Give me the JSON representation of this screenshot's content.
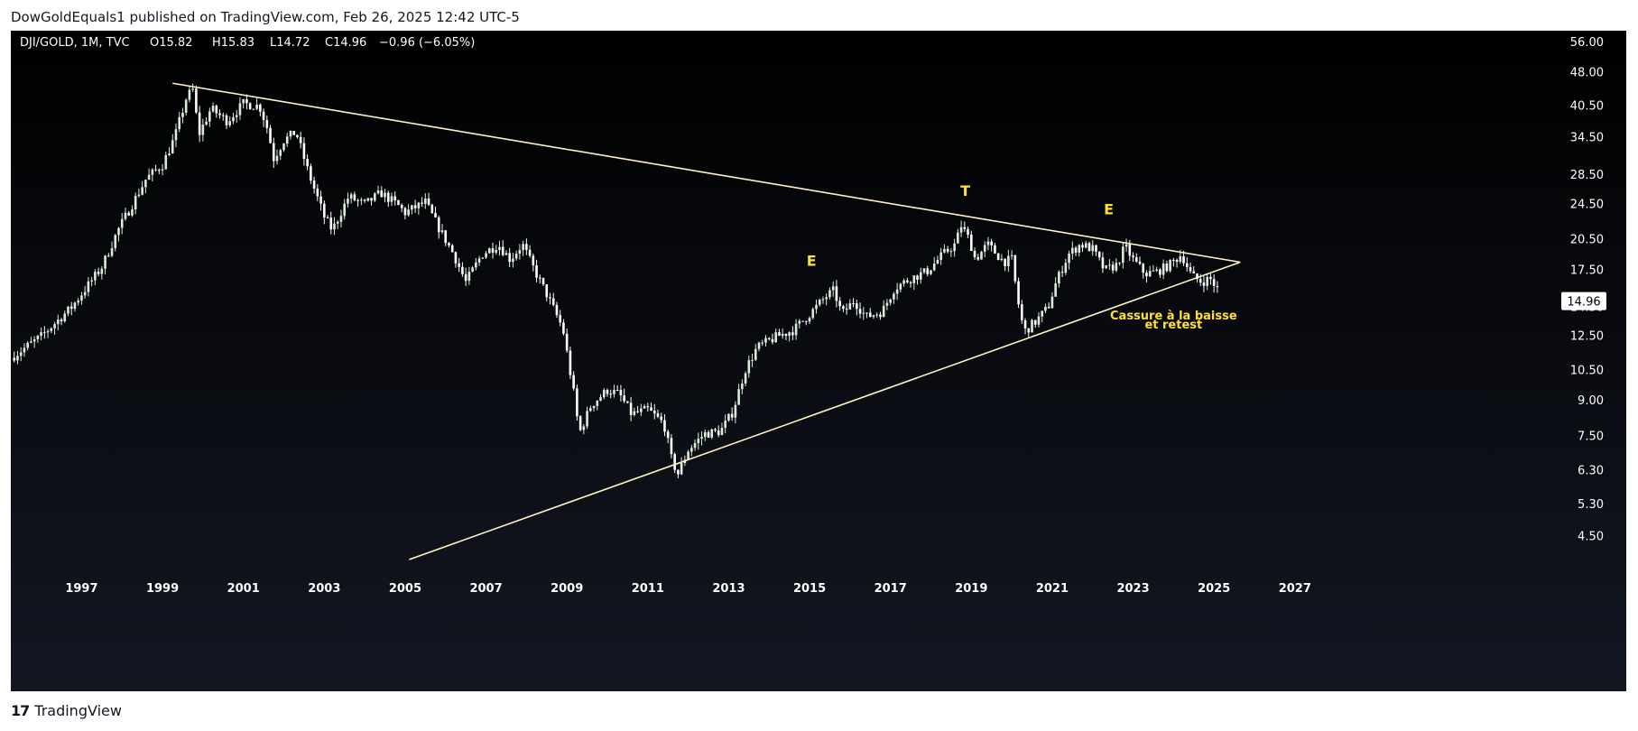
{
  "publish_caption": "DowGoldEquals1 published on TradingView.com, Feb 26, 2025 12:42 UTC-5",
  "footer": {
    "logo_glyph": "17",
    "brand": "TradingView"
  },
  "colors": {
    "bg_top": "#000000",
    "bg_bottom": "#131722",
    "candle_up": "#d9ecd9",
    "candle_down": "#ffffff",
    "trendline": "#fff4c2",
    "annotation": "#ffe033",
    "axis_text": "#ffffff",
    "price_tag_bg": "#ffffff",
    "price_tag_text": "#000000"
  },
  "chart_data": {
    "type": "candlestick",
    "symbol_line": {
      "symbol": "DJI/GOLD, 1M, TVC",
      "open": "O15.82",
      "high": "H15.83",
      "low": "L14.72",
      "close": "C14.96",
      "change": "−0.96 (−6.05%)"
    },
    "y_scale": "log",
    "ylim": [
      3.75,
      59.5
    ],
    "xlim": [
      1995.25,
      2028.5
    ],
    "y_ticks": [
      56.0,
      48.0,
      40.5,
      34.5,
      28.5,
      24.5,
      20.5,
      17.5,
      14.5,
      12.5,
      10.5,
      9.0,
      7.5,
      6.3,
      5.3,
      4.5
    ],
    "y_tick_labels": [
      "56.00",
      "48.00",
      "40.50",
      "34.50",
      "28.50",
      "24.50",
      "20.50",
      "17.50",
      "14.50",
      "12.50",
      "10.50",
      "9.00",
      "7.50",
      "6.30",
      "5.30",
      "4.50"
    ],
    "x_ticks": [
      1997,
      1999,
      2001,
      2003,
      2005,
      2007,
      2009,
      2011,
      2013,
      2015,
      2017,
      2019,
      2021,
      2023,
      2025,
      2027
    ],
    "x_tick_labels": [
      "1997",
      "1999",
      "2001",
      "2003",
      "2005",
      "2007",
      "2009",
      "2011",
      "2013",
      "2015",
      "2017",
      "2019",
      "2021",
      "2023",
      "2025",
      "2027"
    ],
    "last_price": 14.96,
    "last_price_label": "14.96",
    "price_path": [
      [
        1995.25,
        11.2
      ],
      [
        1996.0,
        12.5
      ],
      [
        1996.75,
        14.5
      ],
      [
        1997.5,
        17.8
      ],
      [
        1997.9,
        21.5
      ],
      [
        1998.25,
        24.5
      ],
      [
        1998.6,
        28.0
      ],
      [
        1999.0,
        30.0
      ],
      [
        1999.3,
        34.5
      ],
      [
        1999.6,
        42.5
      ],
      [
        1999.75,
        44.0
      ],
      [
        1999.9,
        35.0
      ],
      [
        2000.2,
        40.0
      ],
      [
        2000.6,
        37.5
      ],
      [
        2001.0,
        41.0
      ],
      [
        2001.4,
        40.5
      ],
      [
        2001.6,
        36.0
      ],
      [
        2001.75,
        31.0
      ],
      [
        2002.0,
        34.0
      ],
      [
        2002.3,
        35.5
      ],
      [
        2002.6,
        29.0
      ],
      [
        2003.0,
        23.0
      ],
      [
        2003.2,
        21.5
      ],
      [
        2003.6,
        25.5
      ],
      [
        2004.0,
        24.5
      ],
      [
        2004.4,
        26.0
      ],
      [
        2004.8,
        24.5
      ],
      [
        2005.0,
        23.5
      ],
      [
        2005.5,
        24.8
      ],
      [
        2005.8,
        22.0
      ],
      [
        2006.2,
        19.0
      ],
      [
        2006.5,
        16.5
      ],
      [
        2006.9,
        19.0
      ],
      [
        2007.3,
        20.0
      ],
      [
        2007.6,
        18.5
      ],
      [
        2007.9,
        20.0
      ],
      [
        2008.2,
        17.5
      ],
      [
        2008.5,
        15.5
      ],
      [
        2008.9,
        13.0
      ],
      [
        2009.2,
        9.0
      ],
      [
        2009.3,
        7.6
      ],
      [
        2009.6,
        8.8
      ],
      [
        2010.0,
        9.5
      ],
      [
        2010.3,
        9.3
      ],
      [
        2010.6,
        8.4
      ],
      [
        2011.0,
        8.6
      ],
      [
        2011.4,
        8.0
      ],
      [
        2011.6,
        6.6
      ],
      [
        2011.75,
        6.2
      ],
      [
        2012.0,
        7.0
      ],
      [
        2012.4,
        7.6
      ],
      [
        2012.8,
        7.7
      ],
      [
        2013.1,
        8.5
      ],
      [
        2013.4,
        10.5
      ],
      [
        2013.7,
        11.8
      ],
      [
        2014.2,
        12.5
      ],
      [
        2014.6,
        12.9
      ],
      [
        2015.0,
        14.0
      ],
      [
        2015.4,
        15.3
      ],
      [
        2015.6,
        15.8
      ],
      [
        2015.8,
        14.0
      ],
      [
        2016.1,
        15.0
      ],
      [
        2016.4,
        13.8
      ],
      [
        2016.8,
        14.2
      ],
      [
        2017.1,
        16.0
      ],
      [
        2017.5,
        16.8
      ],
      [
        2017.9,
        17.4
      ],
      [
        2018.3,
        19.0
      ],
      [
        2018.6,
        20.0
      ],
      [
        2018.75,
        22.0
      ],
      [
        2018.95,
        20.5
      ],
      [
        2019.1,
        18.5
      ],
      [
        2019.4,
        20.0
      ],
      [
        2019.8,
        18.3
      ],
      [
        2020.0,
        18.5
      ],
      [
        2020.15,
        15.0
      ],
      [
        2020.3,
        12.8
      ],
      [
        2020.6,
        13.5
      ],
      [
        2020.9,
        14.5
      ],
      [
        2021.1,
        16.5
      ],
      [
        2021.4,
        19.0
      ],
      [
        2021.7,
        20.0
      ],
      [
        2022.0,
        19.5
      ],
      [
        2022.3,
        17.5
      ],
      [
        2022.6,
        18.0
      ],
      [
        2022.8,
        19.8
      ],
      [
        2023.0,
        18.5
      ],
      [
        2023.3,
        17.2
      ],
      [
        2023.6,
        17.4
      ],
      [
        2023.9,
        18.0
      ],
      [
        2024.2,
        19.0
      ],
      [
        2024.45,
        17.0
      ],
      [
        2024.7,
        16.5
      ],
      [
        2024.9,
        16.8
      ],
      [
        2025.1,
        15.82
      ],
      [
        2025.15,
        14.96
      ]
    ],
    "trendlines": [
      {
        "points": [
          [
            1999.25,
            45.5
          ],
          [
            2025.65,
            18.25
          ]
        ]
      },
      {
        "points": [
          [
            2005.1,
            4.0
          ],
          [
            2025.65,
            18.25
          ]
        ]
      }
    ],
    "annotations": [
      {
        "text": "E",
        "x": 2015.05,
        "y": 17.9
      },
      {
        "text": "T",
        "x": 2018.85,
        "y": 25.6
      },
      {
        "text": "E",
        "x": 2022.4,
        "y": 23.3
      },
      {
        "text": "Cassure à la baisse",
        "x": 2024.0,
        "y": 13.62
      },
      {
        "text": "et retest",
        "x": 2024.0,
        "y": 13.0
      }
    ]
  }
}
